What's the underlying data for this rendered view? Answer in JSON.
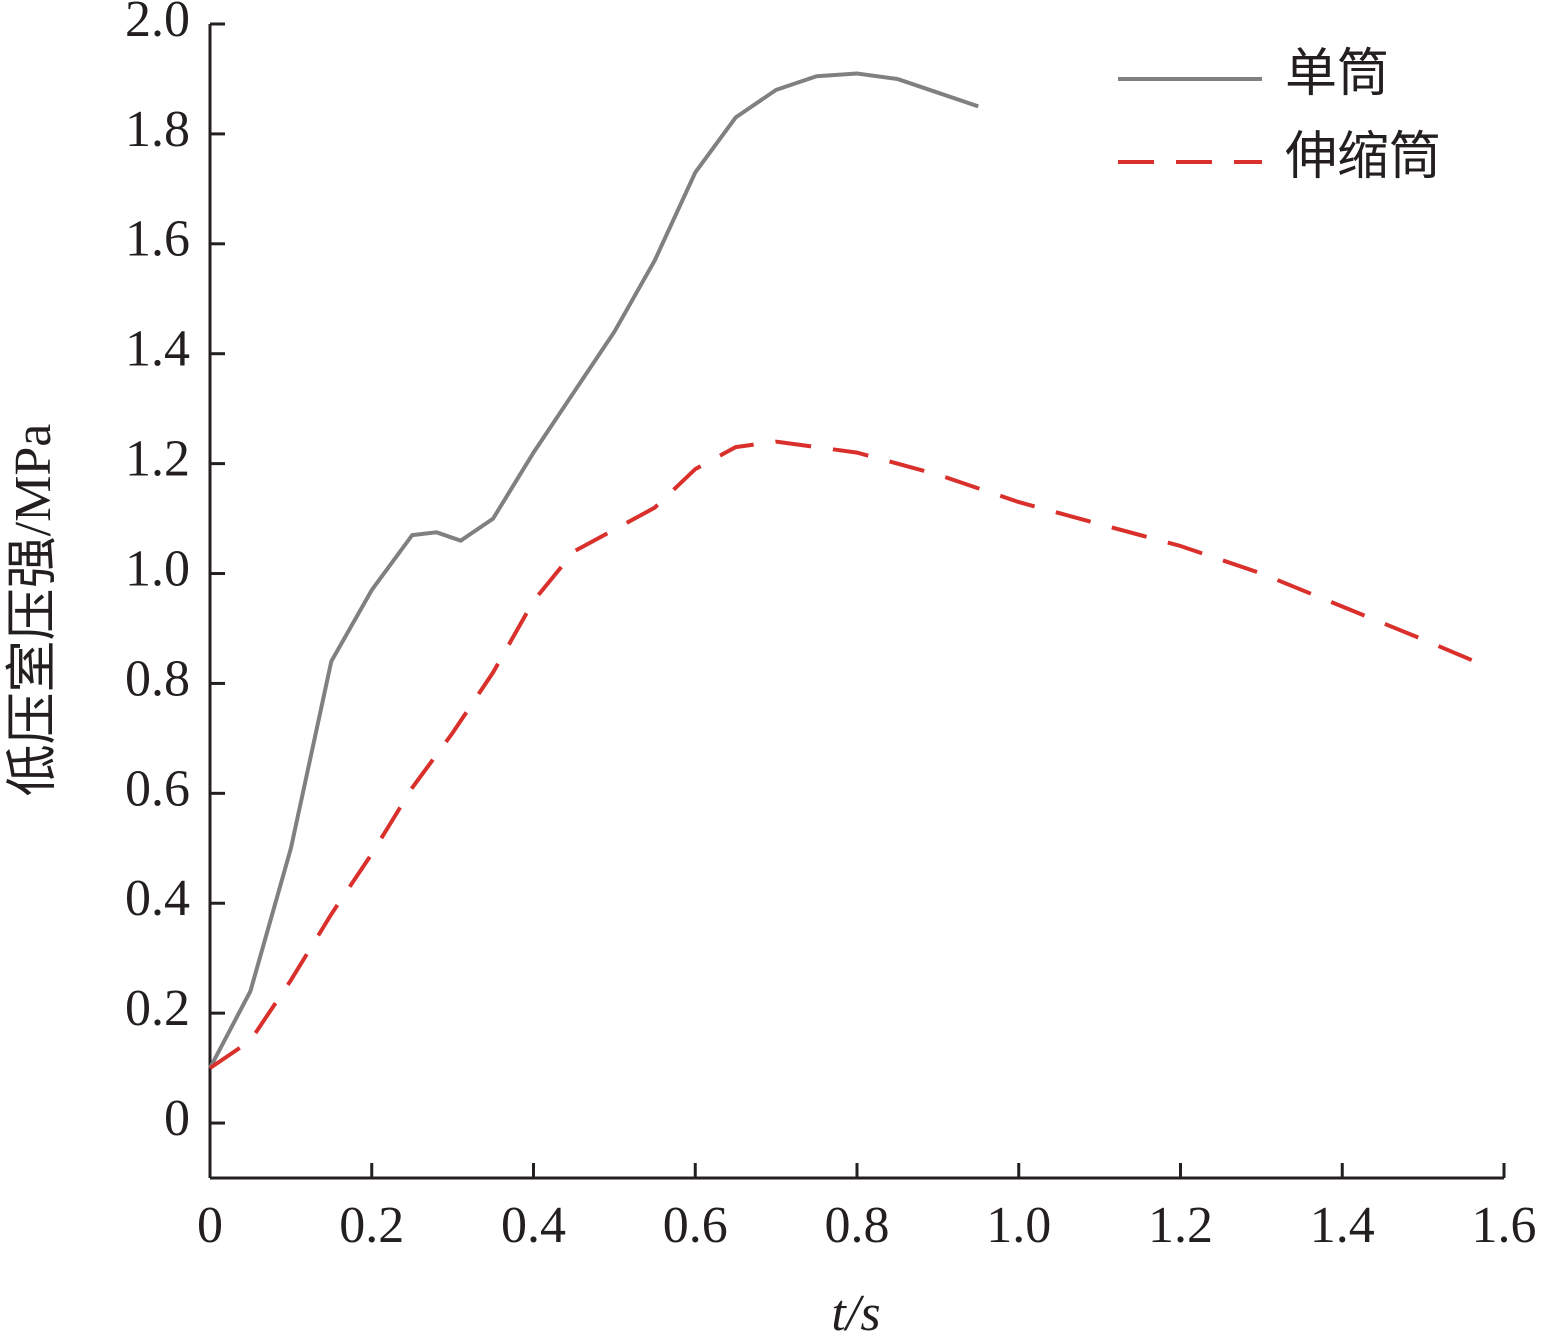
{
  "chart_data": {
    "type": "line",
    "xlabel": "t/s",
    "ylabel": "低压室压强/MPa",
    "xlim": [
      0,
      1.6
    ],
    "ylim": [
      -0.1,
      2.0
    ],
    "xticks": [
      0,
      0.2,
      0.4,
      0.6,
      0.8,
      {
        "value": 1.0,
        "label": "1.0"
      },
      1.2,
      1.4,
      1.6
    ],
    "yticks": [
      0,
      0.2,
      0.4,
      0.6,
      0.8,
      {
        "value": 1.0,
        "label": "1.0"
      },
      1.2,
      1.4,
      1.6,
      1.8,
      {
        "value": 2.0,
        "label": "2.0"
      }
    ],
    "legend": "upper right",
    "series": [
      {
        "name": "单筒",
        "color": "#808080",
        "dash": false,
        "x": [
          0,
          0.05,
          0.1,
          0.15,
          0.2,
          0.25,
          0.28,
          0.31,
          0.35,
          0.4,
          0.45,
          0.5,
          0.55,
          0.6,
          0.65,
          0.7,
          0.75,
          0.8,
          0.85,
          0.9,
          0.95
        ],
        "values": [
          0.1,
          0.24,
          0.5,
          0.84,
          0.97,
          1.07,
          1.075,
          1.06,
          1.1,
          1.22,
          1.33,
          1.44,
          1.57,
          1.73,
          1.83,
          1.88,
          1.905,
          1.91,
          1.9,
          1.875,
          1.85
        ]
      },
      {
        "name": "伸缩筒",
        "color": "#d9302c",
        "dash": true,
        "x": [
          0,
          0.05,
          0.1,
          0.15,
          0.2,
          0.25,
          0.3,
          0.35,
          0.4,
          0.45,
          0.5,
          0.55,
          0.6,
          0.65,
          0.7,
          0.75,
          0.8,
          0.9,
          1.0,
          1.1,
          1.2,
          1.3,
          1.4,
          1.5,
          1.58
        ],
        "values": [
          0.1,
          0.15,
          0.26,
          0.38,
          0.49,
          0.61,
          0.71,
          0.82,
          0.95,
          1.04,
          1.08,
          1.12,
          1.19,
          1.23,
          1.24,
          1.23,
          1.22,
          1.18,
          1.13,
          1.09,
          1.05,
          1.0,
          0.94,
          0.88,
          0.83
        ]
      }
    ]
  }
}
